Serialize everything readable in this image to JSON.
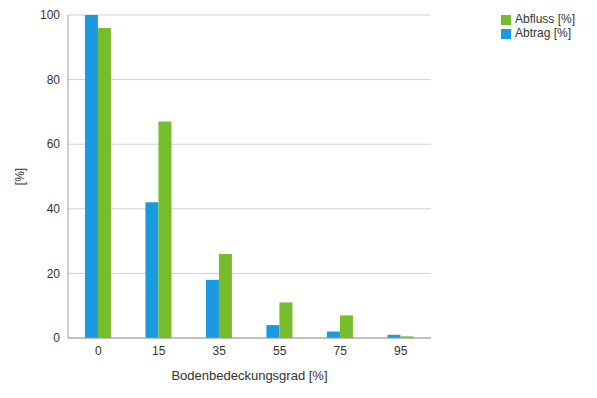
{
  "chart_data": {
    "type": "bar",
    "x_label": "Bodenbedeckungsgrad [%]",
    "y_label": "[%]",
    "categories": [
      "0",
      "15",
      "35",
      "55",
      "75",
      "95"
    ],
    "series": [
      {
        "name": "Abtrag [%]",
        "color": "#1a9ae0",
        "values": [
          100,
          42,
          18,
          4,
          2,
          1
        ]
      },
      {
        "name": "Abfluss [%]",
        "color": "#77bc2b",
        "values": [
          96,
          67,
          26,
          11,
          7,
          0.5
        ]
      }
    ],
    "ylim": [
      0,
      100
    ],
    "yticks": [
      0,
      20,
      40,
      60,
      80,
      100
    ],
    "grid": true,
    "legend": "upper right"
  }
}
